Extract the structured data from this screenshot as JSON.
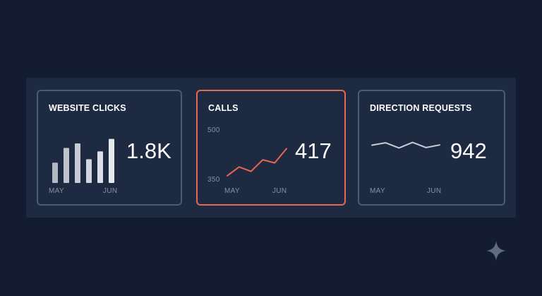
{
  "cards": [
    {
      "title": "WEBSITE CLICKS",
      "value": "1.8K",
      "axis_start": "MAY",
      "axis_end": "JUN",
      "selected": false,
      "chart_data": {
        "type": "bar",
        "values": [
          0.36,
          0.62,
          0.7,
          0.42,
          0.56,
          0.78
        ],
        "color": "#e6e8ee"
      }
    },
    {
      "title": "CALLS",
      "value": "417",
      "axis_start": "MAY",
      "axis_end": "JUN",
      "y_top_label": "500",
      "y_bottom_label": "350",
      "selected": true,
      "chart_data": {
        "type": "line",
        "ylim": [
          350,
          500
        ],
        "values": [
          365,
          391,
          378,
          412,
          403,
          445
        ],
        "color": "#e76654"
      }
    },
    {
      "title": "DIRECTION REQUESTS",
      "value": "942",
      "axis_start": "MAY",
      "axis_end": "JUN",
      "selected": false,
      "chart_data": {
        "type": "line",
        "values": [
          0.75,
          0.88,
          0.6,
          0.9,
          0.62,
          0.76
        ],
        "color": "#c7ccd6"
      }
    }
  ],
  "colors": {
    "background": "#131c30",
    "panel": "#1d2a42",
    "card_border": "#4d5a70",
    "accent": "#e76654"
  },
  "icons": {
    "corner": "sparkle-icon"
  }
}
